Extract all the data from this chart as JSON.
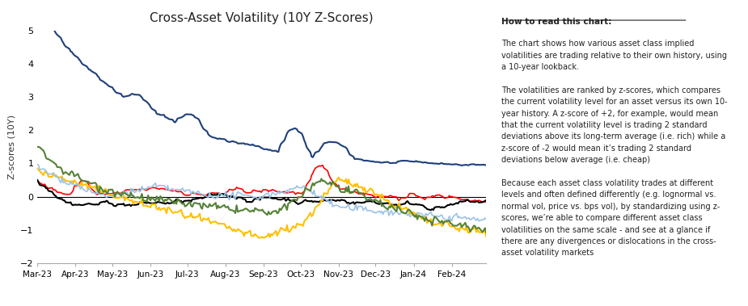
{
  "title": "Cross-Asset Volatility (10Y Z-Scores)",
  "ylabel": "Z-scores (10Y)",
  "ylim": [
    -2,
    5
  ],
  "yticks": [
    -2,
    -1,
    0,
    1,
    2,
    3,
    4,
    5
  ],
  "background_color": "#ffffff",
  "title_fontsize": 11,
  "annotation_title": "How to read this chart:",
  "body_text": "The chart shows how various asset class implied\nvolatilities are trading relative to their own history, using\na 10-year lookback.\n\nThe volatilities are ranked by z-scores, which compares\nthe current volatility level for an asset versus its own 10-\nyear history. A z-score of +2, for example, would mean\nthat the current volatility level is trading 2 standard\ndeviations above its long-term average (i.e. rich) while a\nz-score of -2 would mean it’s trading 2 standard\ndeviations below average (i.e. cheap)\n\nBecause each asset class volatility trades at different\nlevels and often defined differently (e.g. lognormal vs.\nnormal vol, price vs. bps vol), by standardizing using z-\nscores, we’re able to compare different asset class\nvolatilities on the same scale - and see at a glance if\nthere are any divergences or dislocations in the cross-\nasset volatility markets",
  "series": {
    "Equity (VIX)": {
      "color": "#ff0000",
      "linewidth": 1.2
    },
    "Rates (MOVE)": {
      "color": "#1f3f7a",
      "linewidth": 1.5
    },
    "Oil": {
      "color": "#000000",
      "linewidth": 1.5
    },
    "Gold": {
      "color": "#ffc000",
      "linewidth": 1.5
    },
    "FX": {
      "color": "#9dc3e6",
      "linewidth": 1.2
    },
    "IG Credit (VIXIG)": {
      "color": "#548235",
      "linewidth": 1.5
    }
  }
}
